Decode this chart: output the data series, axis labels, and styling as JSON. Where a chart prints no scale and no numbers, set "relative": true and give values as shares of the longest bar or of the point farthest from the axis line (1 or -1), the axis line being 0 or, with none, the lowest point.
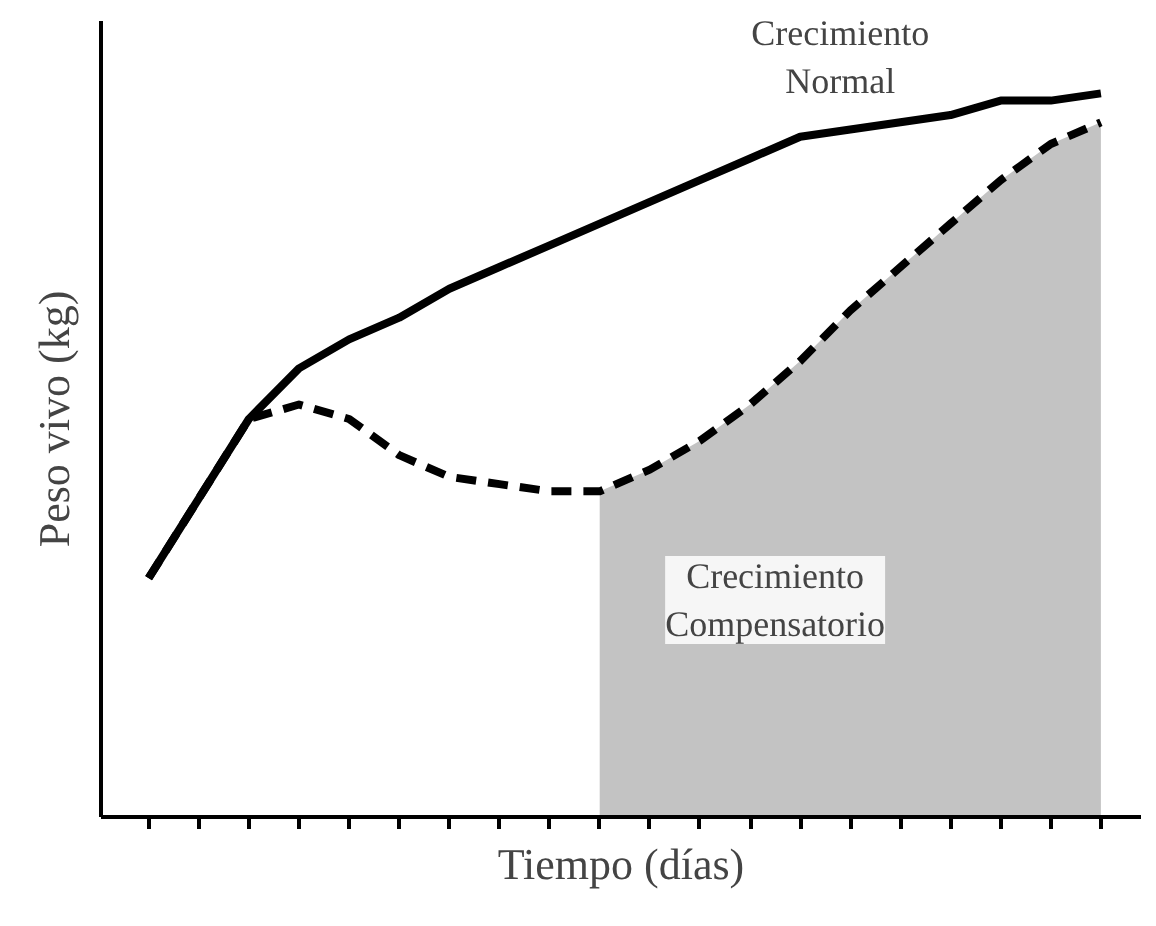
{
  "chart_data": {
    "type": "line",
    "relative": true,
    "xlabel": "Tiempo (días)",
    "ylabel": "Peso vivo (kg)",
    "categories": [
      null,
      null,
      null,
      null,
      null,
      null,
      null,
      null,
      null,
      null,
      null,
      null,
      null,
      null,
      null,
      null,
      null,
      null,
      null,
      null
    ],
    "grid": false,
    "series": [
      {
        "type": "area",
        "color": "#b4b4b4",
        "values": [
          null,
          null,
          null,
          null,
          null,
          null,
          null,
          null,
          null,
          0.45,
          0.48,
          0.52,
          0.57,
          0.63,
          0.7,
          0.76,
          0.82,
          0.88,
          0.93,
          0.96
        ]
      },
      {
        "line_style": "solid",
        "color": "#000000",
        "values": [
          0.33,
          0.44,
          0.55,
          0.62,
          0.66,
          0.69,
          0.73,
          0.76,
          0.79,
          0.82,
          0.85,
          0.88,
          0.91,
          0.94,
          0.95,
          0.96,
          0.97,
          0.99,
          0.99,
          1.0
        ]
      },
      {
        "line_style": "dashed",
        "color": "#000000",
        "values": [
          0.33,
          0.44,
          0.55,
          0.57,
          0.55,
          0.5,
          0.47,
          0.46,
          0.45,
          0.45,
          0.48,
          0.52,
          0.57,
          0.63,
          0.7,
          0.76,
          0.82,
          0.88,
          0.93,
          0.96
        ]
      }
    ],
    "annotations": [
      "Crecimiento\nNormal",
      "Crecimiento\nCompensatorio"
    ]
  }
}
